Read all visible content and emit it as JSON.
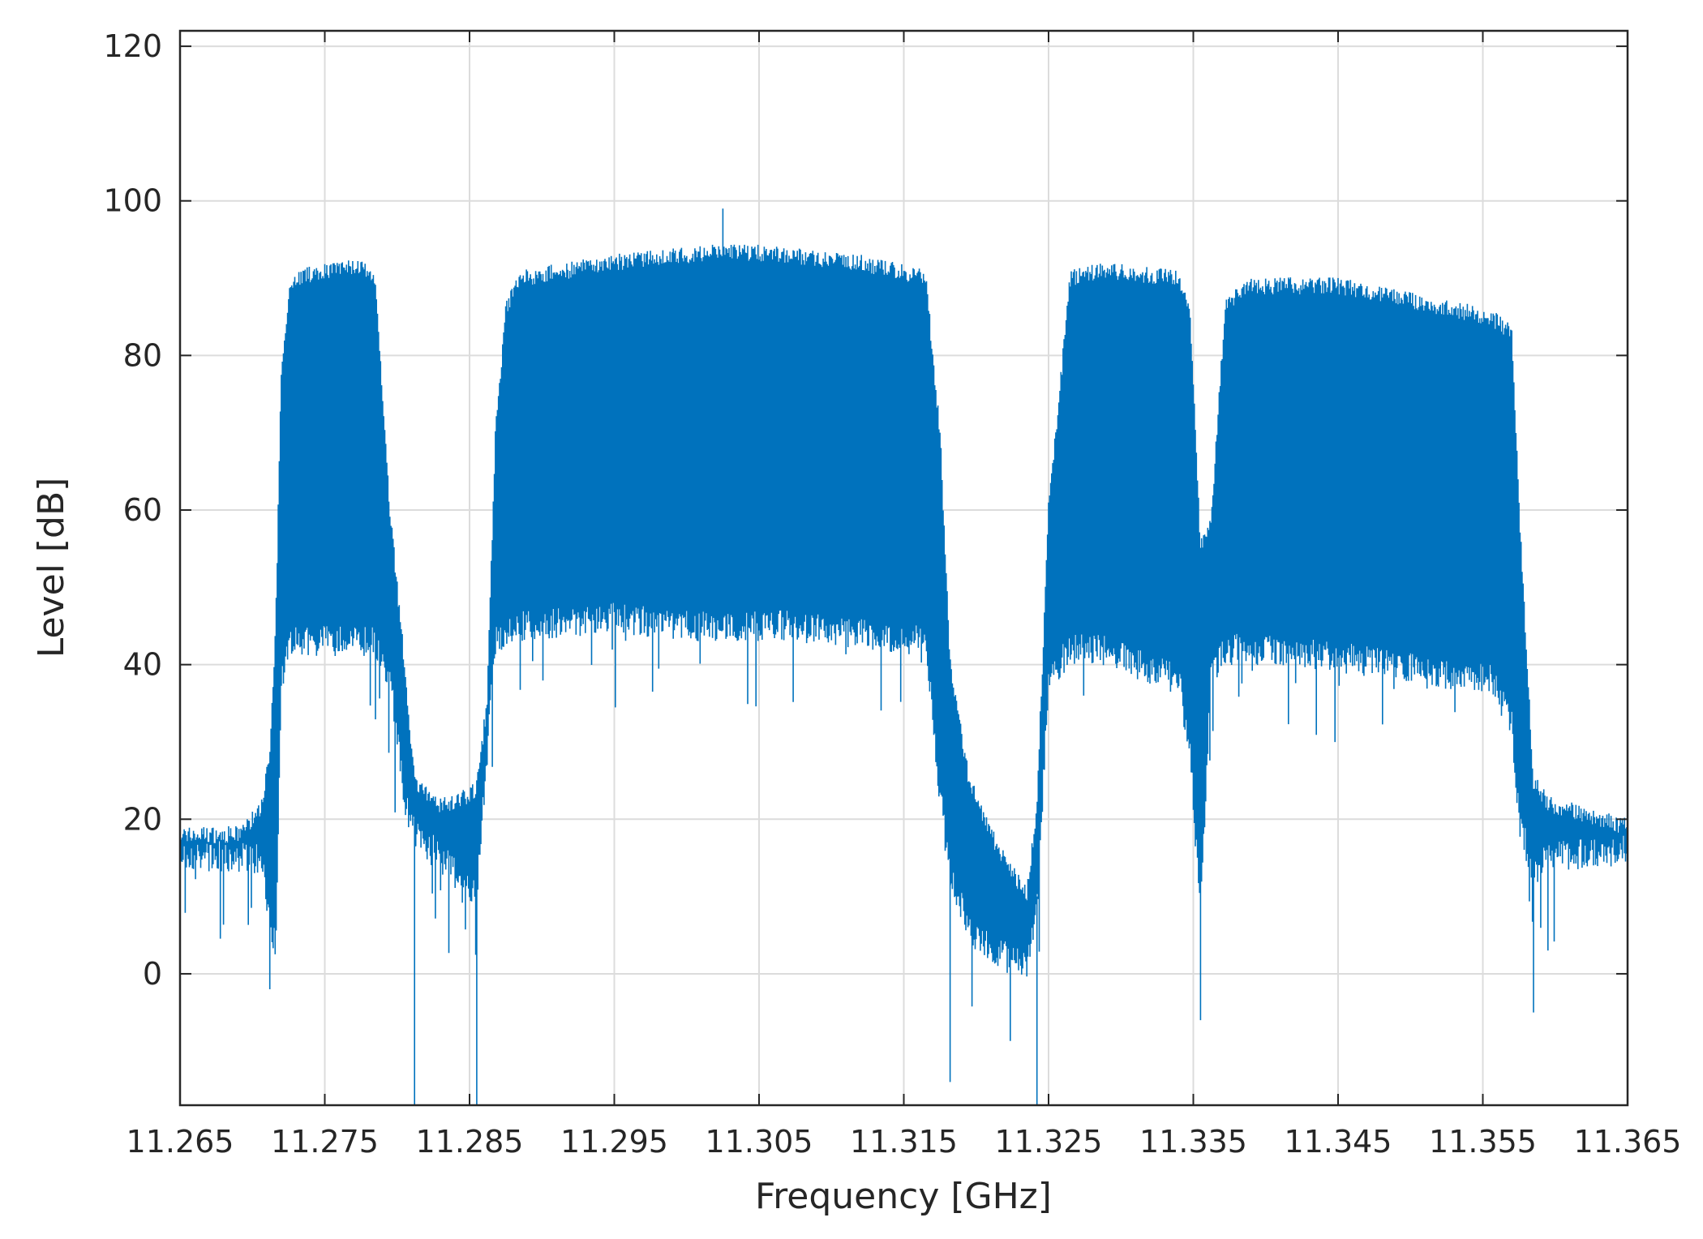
{
  "chart_data": {
    "type": "line",
    "title": "",
    "xlabel": "Frequency [GHz]",
    "ylabel": "Level [dB]",
    "xlim": [
      11.265,
      11.365
    ],
    "ylim": [
      -17,
      122
    ],
    "x_ticks": [
      11.265,
      11.275,
      11.285,
      11.295,
      11.305,
      11.315,
      11.325,
      11.335,
      11.345,
      11.355,
      11.365
    ],
    "x_tick_labels": [
      "11.265",
      "11.275",
      "11.285",
      "11.295",
      "11.305",
      "11.315",
      "11.325",
      "11.335",
      "11.345",
      "11.355",
      "11.365"
    ],
    "y_ticks": [
      0,
      20,
      40,
      60,
      80,
      100,
      120
    ],
    "y_tick_labels": [
      "0",
      "20",
      "40",
      "60",
      "80",
      "100",
      "120"
    ],
    "grid": true,
    "legend": "none",
    "series": [
      {
        "color": "#0072BD",
        "description_points": {
          "x": [
            11.265,
            11.269,
            11.2705,
            11.2712,
            11.2716,
            11.272,
            11.2725,
            11.273,
            11.275,
            11.2775,
            11.2785,
            11.2795,
            11.2805,
            11.2812,
            11.2825,
            11.284,
            11.2855,
            11.2862,
            11.2868,
            11.2875,
            11.2885,
            11.295,
            11.3,
            11.303,
            11.307,
            11.312,
            11.3165,
            11.3175,
            11.3182,
            11.3195,
            11.321,
            11.3235,
            11.3242,
            11.325,
            11.3265,
            11.3285,
            11.334,
            11.3348,
            11.3355,
            11.3362,
            11.3372,
            11.3385,
            11.345,
            11.3555,
            11.357,
            11.3575,
            11.3585,
            11.3595,
            11.365
          ],
          "y_upper": [
            18,
            18,
            21,
            28,
            44,
            78,
            88,
            90,
            91,
            91.5,
            89,
            60,
            40,
            25,
            22,
            22,
            24,
            35,
            70,
            86,
            90,
            92,
            93,
            93.5,
            93,
            92,
            90,
            70,
            40,
            25,
            18,
            10,
            22,
            60,
            90,
            91,
            90,
            85,
            55,
            58,
            86,
            89,
            89,
            85,
            83,
            60,
            25,
            22,
            19
          ],
          "y_lower": [
            17.5,
            17,
            17,
            10,
            5,
            40,
            44,
            45,
            45,
            45,
            45,
            40,
            25,
            20,
            18,
            15,
            12,
            30,
            45,
            46,
            47,
            48,
            47,
            47,
            47,
            46,
            45,
            25,
            15,
            8,
            5,
            3,
            10,
            40,
            44,
            44,
            40,
            30,
            10,
            40,
            44,
            44,
            43,
            40,
            35,
            22,
            15,
            17,
            18
          ],
          "y_min_spikes": [
            {
              "x": 11.2712,
              "y": -2
            },
            {
              "x": 11.2812,
              "y": -17
            },
            {
              "x": 11.2855,
              "y": -17
            },
            {
              "x": 11.3182,
              "y": -14
            },
            {
              "x": 11.3242,
              "y": -17
            },
            {
              "x": 11.3355,
              "y": -6
            },
            {
              "x": 11.3585,
              "y": -5
            }
          ],
          "y_max_spike": {
            "x": 11.3025,
            "y": 99
          }
        }
      }
    ]
  }
}
